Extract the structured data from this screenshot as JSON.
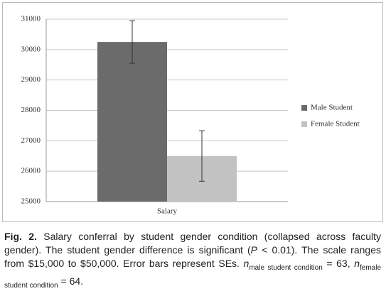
{
  "chart_data": {
    "type": "bar",
    "categories": [
      "Salary"
    ],
    "series": [
      {
        "name": "Male Student",
        "color": "#6b6b6b",
        "values": [
          30250
        ],
        "errors": [
          700
        ]
      },
      {
        "name": "Female Student",
        "color": "#c2c2c2",
        "values": [
          26500
        ],
        "errors": [
          830
        ]
      }
    ],
    "ylim": [
      25000,
      31000
    ],
    "yticks": [
      25000,
      26000,
      27000,
      28000,
      29000,
      30000,
      31000
    ],
    "grid": true,
    "legend": "right"
  },
  "caption": [
    {
      "text": "Fig. 2.",
      "style": "bold"
    },
    {
      "text": "  Salary conferral by student gender condition (collapsed across faculty gender). The student gender difference is significant (",
      "style": "normal"
    },
    {
      "text": "P",
      "style": "italic"
    },
    {
      "text": " < 0.01). The scale ranges from $15,000 to $50,000. Error bars represent SEs. ",
      "style": "normal"
    },
    {
      "text": "n",
      "style": "italic"
    },
    {
      "text": "male student condition",
      "style": "sub"
    },
    {
      "text": " = 63, ",
      "style": "normal"
    },
    {
      "text": "n",
      "style": "italic"
    },
    {
      "text": "female student condition",
      "style": "sub"
    },
    {
      "text": " = 64.",
      "style": "normal"
    }
  ]
}
